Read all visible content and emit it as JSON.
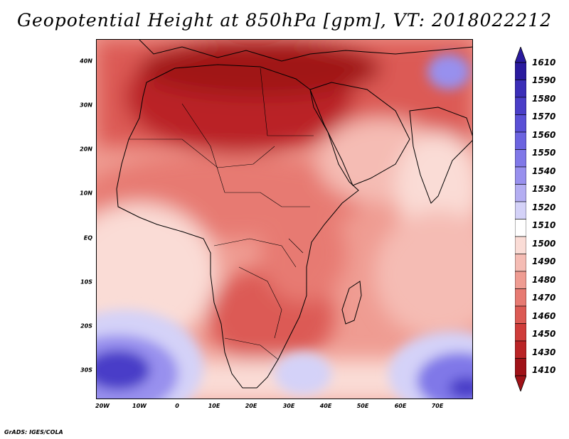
{
  "title": "Geopotential Height at 850hPa [gpm], VT: 2018022212",
  "credit": "GrADS: IGES/COLA",
  "map": {
    "lat_labels": [
      "40N",
      "30N",
      "20N",
      "10N",
      "EQ",
      "10S",
      "20S",
      "30S"
    ],
    "lon_labels": [
      "20W",
      "10W",
      "0",
      "10E",
      "20E",
      "30E",
      "40E",
      "50E",
      "60E",
      "70E"
    ]
  },
  "colorbar": {
    "levels": [
      "1610",
      "1590",
      "1580",
      "1570",
      "1560",
      "1550",
      "1540",
      "1530",
      "1520",
      "1510",
      "1500",
      "1490",
      "1480",
      "1470",
      "1460",
      "1450",
      "1430",
      "1410"
    ],
    "colors": [
      "#2a1a9e",
      "#3b2eb8",
      "#4a3ec8",
      "#5a50d6",
      "#6c64e0",
      "#8078e8",
      "#9890ee",
      "#b4aef2",
      "#d4d2f8",
      "#ffffff",
      "#fadcd6",
      "#f5bcb4",
      "#ef9c92",
      "#e77a72",
      "#dc5a54",
      "#cf3c3a",
      "#ba2426",
      "#a01218"
    ]
  }
}
